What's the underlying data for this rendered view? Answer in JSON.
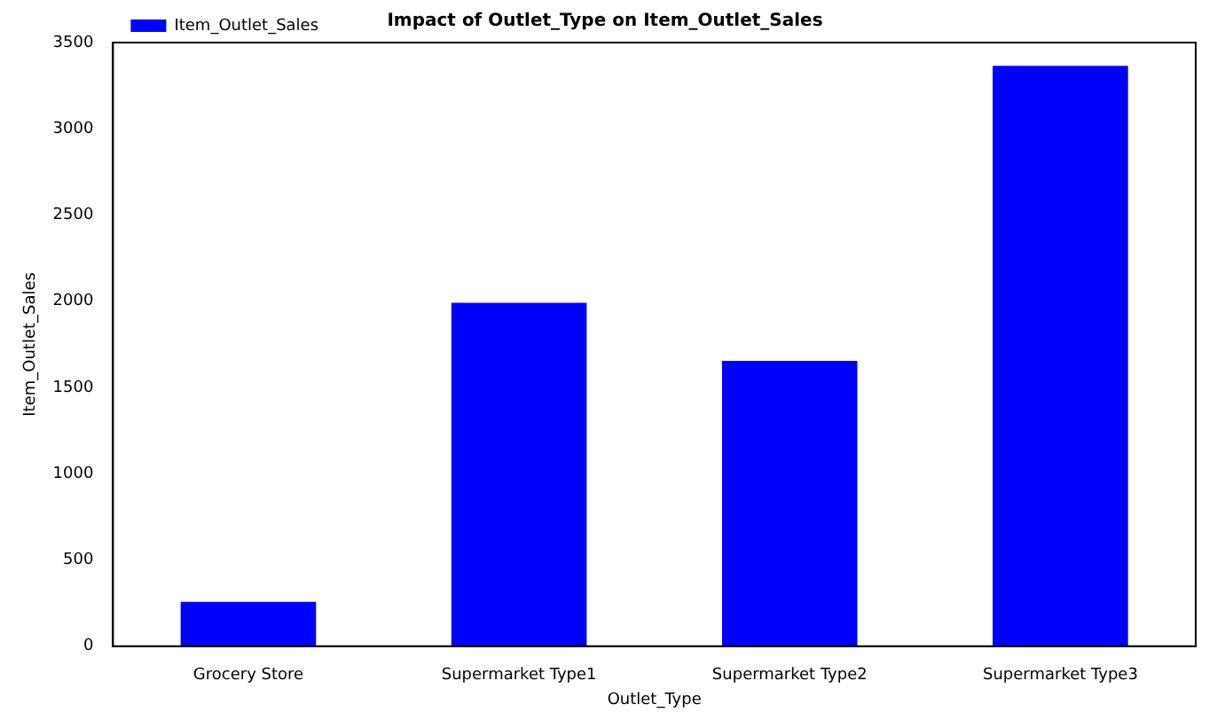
{
  "chart_data": {
    "type": "bar",
    "title": "Impact of Outlet_Type on Item_Outlet_Sales",
    "xlabel": "Outlet_Type",
    "ylabel": "Item_Outlet_Sales",
    "categories": [
      "Grocery Store",
      "Supermarket Type1",
      "Supermarket Type2",
      "Supermarket Type3"
    ],
    "series": [
      {
        "name": "Item_Outlet_Sales",
        "color": "#0000ff",
        "values": [
          257,
          1991,
          1655,
          3365
        ]
      }
    ],
    "ylim": [
      0,
      3500
    ],
    "yticks": [
      0,
      500,
      1000,
      1500,
      2000,
      2500,
      3000,
      3500
    ],
    "grid": false,
    "legend": "top left"
  }
}
